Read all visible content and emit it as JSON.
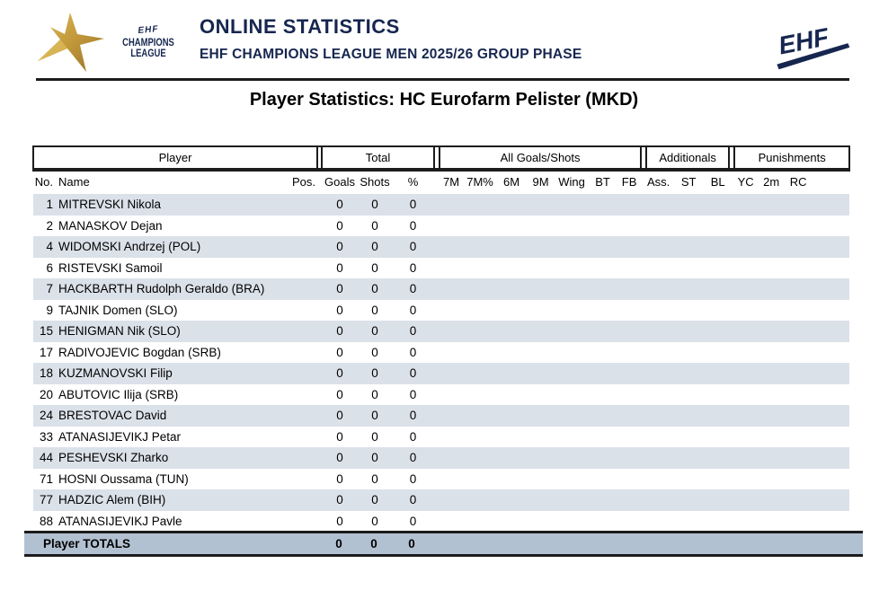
{
  "header": {
    "logo_cl": {
      "ehf": "EHF",
      "champions": "CHAMPIONS",
      "league": "LEAGUE"
    },
    "title": "ONLINE STATISTICS",
    "subtitle": "EHF CHAMPIONS LEAGUE MEN 2025/26 GROUP PHASE",
    "logo_ehf": {
      "text": "EHF"
    }
  },
  "page_title": "Player Statistics: HC Eurofarm Pelister (MKD)",
  "table": {
    "group_headers": [
      "Player",
      "Total",
      "All Goals/Shots",
      "Additionals",
      "Punishments"
    ],
    "columns": [
      "No.",
      "Name",
      "Pos.",
      "Goals",
      "Shots",
      "%",
      "7M",
      "7M%",
      "6M",
      "9M",
      "Wing",
      "BT",
      "FB",
      "Ass.",
      "ST",
      "BL",
      "YC",
      "2m",
      "RC"
    ],
    "rows": [
      {
        "no": "1",
        "name": "MITREVSKI Nikola",
        "pos": "",
        "goals": "0",
        "shots": "0",
        "pct": "0"
      },
      {
        "no": "2",
        "name": "MANASKOV Dejan",
        "pos": "",
        "goals": "0",
        "shots": "0",
        "pct": "0"
      },
      {
        "no": "4",
        "name": "WIDOMSKI Andrzej (POL)",
        "pos": "",
        "goals": "0",
        "shots": "0",
        "pct": "0"
      },
      {
        "no": "6",
        "name": "RISTEVSKI Samoil",
        "pos": "",
        "goals": "0",
        "shots": "0",
        "pct": "0"
      },
      {
        "no": "7",
        "name": "HACKBARTH Rudolph Geraldo (BRA)",
        "pos": "",
        "goals": "0",
        "shots": "0",
        "pct": "0"
      },
      {
        "no": "9",
        "name": "TAJNIK Domen (SLO)",
        "pos": "",
        "goals": "0",
        "shots": "0",
        "pct": "0"
      },
      {
        "no": "15",
        "name": "HENIGMAN Nik (SLO)",
        "pos": "",
        "goals": "0",
        "shots": "0",
        "pct": "0"
      },
      {
        "no": "17",
        "name": "RADIVOJEVIC Bogdan (SRB)",
        "pos": "",
        "goals": "0",
        "shots": "0",
        "pct": "0"
      },
      {
        "no": "18",
        "name": "KUZMANOVSKI Filip",
        "pos": "",
        "goals": "0",
        "shots": "0",
        "pct": "0"
      },
      {
        "no": "20",
        "name": "ABUTOVIC Ilija (SRB)",
        "pos": "",
        "goals": "0",
        "shots": "0",
        "pct": "0"
      },
      {
        "no": "24",
        "name": "BRESTOVAC David",
        "pos": "",
        "goals": "0",
        "shots": "0",
        "pct": "0"
      },
      {
        "no": "33",
        "name": "ATANASIJEVIKJ Petar",
        "pos": "",
        "goals": "0",
        "shots": "0",
        "pct": "0"
      },
      {
        "no": "44",
        "name": "PESHEVSKI Zharko",
        "pos": "",
        "goals": "0",
        "shots": "0",
        "pct": "0"
      },
      {
        "no": "71",
        "name": "HOSNI Oussama (TUN)",
        "pos": "",
        "goals": "0",
        "shots": "0",
        "pct": "0"
      },
      {
        "no": "77",
        "name": "HADZIC Alem (BIH)",
        "pos": "",
        "goals": "0",
        "shots": "0",
        "pct": "0"
      },
      {
        "no": "88",
        "name": "ATANASIJEVIKJ Pavle",
        "pos": "",
        "goals": "0",
        "shots": "0",
        "pct": "0"
      }
    ],
    "totals": {
      "label": "Player TOTALS",
      "goals": "0",
      "shots": "0",
      "pct": "0"
    }
  },
  "colors": {
    "navy": "#16264f",
    "gold": "#c2983a",
    "row_shade": "#dbe1e9",
    "totals_bg": "#b2c1d2",
    "line": "#1c1c1e"
  }
}
